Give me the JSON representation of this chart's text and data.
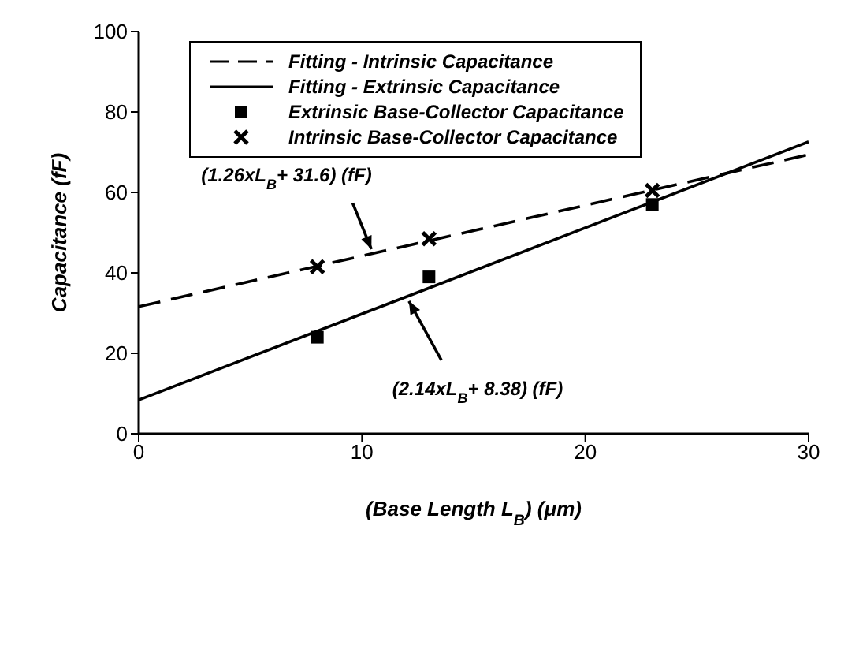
{
  "chart_data": {
    "type": "line",
    "xlabel": "(Base Length L$_{B}$) (μm)",
    "ylabel": "Capacitance (fF)",
    "xlim": [
      0,
      30
    ],
    "xticks": [
      0,
      10,
      20,
      30
    ],
    "ylim": [
      0,
      100
    ],
    "yticks": [
      0,
      20,
      40,
      60,
      80,
      100
    ],
    "grid": false,
    "legend": "top left",
    "series": [
      {
        "name": "Fitting - Intrinsic Capacitance",
        "line_style": "dashed",
        "marker": "none",
        "color": "#000000",
        "x": [
          0,
          30
        ],
        "values": [
          31.6,
          69.4
        ]
      },
      {
        "name": "Fitting - Extrinsic Capacitance",
        "line_style": "solid",
        "marker": "none",
        "color": "#000000",
        "x": [
          0,
          30
        ],
        "values": [
          8.4,
          72.6
        ]
      },
      {
        "name": "Extrinsic Base-Collector Capacitance",
        "type": "scatter",
        "marker": "square",
        "color": "#000000",
        "x": [
          8,
          13,
          23
        ],
        "values": [
          24,
          39,
          57
        ]
      },
      {
        "name": "Intrinsic Base-Collector Capacitance",
        "type": "scatter",
        "marker": "cross",
        "color": "#000000",
        "x": [
          8,
          13,
          23
        ],
        "values": [
          41.5,
          48.5,
          60.5
        ]
      }
    ],
    "annotations": [
      {
        "text": "(1.26xL$_{B}$+ 31.6) (fF)",
        "x": 10.5,
        "y": 44.8
      },
      {
        "text": "(2.14xL$_{B}$+ 8.38) (fF)",
        "x": 12,
        "y": 34
      }
    ]
  }
}
